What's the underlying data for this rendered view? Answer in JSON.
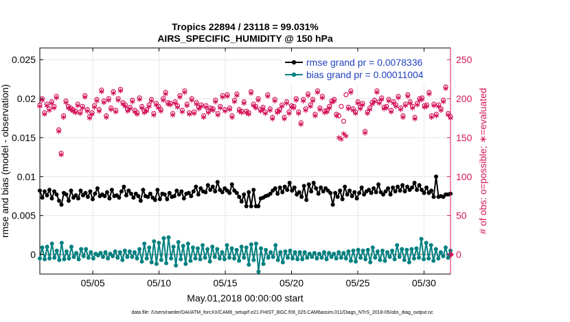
{
  "chart_data": {
    "type": "line",
    "title": "Tropics 22894 / 23118 = 99.031%",
    "subtitle": "AIRS_SPECIFIC_HUMIDITY @ 150 hPa",
    "xlabel": "May.01,2018 00:00:00 start",
    "ylabel_left": "rmse and bias (model - observation)",
    "ylabel_right": "# of obs: o=possible; ∗=evaluated",
    "xlim": [
      1,
      32
    ],
    "ylim_left": [
      -0.0025,
      0.0265
    ],
    "ylim_right": [
      -25,
      265
    ],
    "x_ticks": [
      5,
      10,
      15,
      20,
      25,
      30
    ],
    "x_tick_labels": [
      "05/05",
      "05/10",
      "05/15",
      "05/20",
      "05/25",
      "05/30"
    ],
    "y_ticks_left": [
      0,
      0.005,
      0.01,
      0.015,
      0.02,
      0.025
    ],
    "y_tick_labels_left": [
      "0",
      "0.005",
      "0.01",
      "0.015",
      "0.02",
      "0.025"
    ],
    "y_ticks_right": [
      0,
      50,
      100,
      150,
      200,
      250
    ],
    "y_tick_labels_right": [
      "0",
      "50",
      "100",
      "150",
      "200",
      "250"
    ],
    "grid": true,
    "legend_position": "top-right",
    "series": [
      {
        "name": "rmse grand pr = 0.0078336",
        "color": "#000000",
        "axis": "left",
        "values": [
          0.0082,
          0.0073,
          0.0081,
          0.0076,
          0.0083,
          0.0072,
          0.0081,
          0.0077,
          0.0069,
          0.0064,
          0.0079,
          0.0077,
          0.0069,
          0.0082,
          0.0073,
          0.0076,
          0.0072,
          0.0082,
          0.0076,
          0.0079,
          0.0074,
          0.0081,
          0.0071,
          0.0078,
          0.0085,
          0.0075,
          0.0077,
          0.0075,
          0.008,
          0.0072,
          0.0083,
          0.0075,
          0.0076,
          0.0073,
          0.0081,
          0.0087,
          0.0076,
          0.0082,
          0.0078,
          0.0073,
          0.0078,
          0.0075,
          0.0069,
          0.0083,
          0.0075,
          0.0074,
          0.0078,
          0.0073,
          0.007,
          0.0083,
          0.0071,
          0.0078,
          0.0077,
          0.0071,
          0.0079,
          0.0074,
          0.0075,
          0.0082,
          0.0077,
          0.0081,
          0.0072,
          0.0078,
          0.0079,
          0.0075,
          0.0081,
          0.0087,
          0.0077,
          0.0085,
          0.0081,
          0.008,
          0.0089,
          0.0083,
          0.0087,
          0.0081,
          0.0093,
          0.0083,
          0.008,
          0.0085,
          0.0082,
          0.0079,
          0.009,
          0.0082,
          0.0079,
          0.0074,
          0.0068,
          0.0077,
          0.0062,
          0.008,
          0.0062,
          0.0083,
          0.0062,
          0.0062,
          0.0072,
          0.0073,
          0.0075,
          0.0076,
          0.0078,
          0.0082,
          0.0085,
          0.0078,
          0.0086,
          0.008,
          0.0087,
          0.0083,
          0.0092,
          0.0082,
          0.0086,
          0.0077,
          0.008,
          0.0074,
          0.0088,
          0.007,
          0.009,
          0.0081,
          0.0092,
          0.0085,
          0.0078,
          0.0086,
          0.0081,
          0.0085,
          0.0082,
          0.0079,
          0.0064,
          0.0079,
          0.0074,
          0.0082,
          0.0071,
          0.0087,
          0.0077,
          0.0082,
          0.0075,
          0.008,
          0.0072,
          0.0079,
          0.0086,
          0.0077,
          0.0081,
          0.0083,
          0.0079,
          0.0085,
          0.008,
          0.009,
          0.008,
          0.0077,
          0.0081,
          0.0085,
          0.0077,
          0.0086,
          0.0081,
          0.0087,
          0.0082,
          0.0089,
          0.0081,
          0.0087,
          0.0083,
          0.0086,
          0.0092,
          0.0083,
          0.0089,
          0.0083,
          0.0079,
          0.0086,
          0.0079,
          0.0082,
          0.0074,
          0.01,
          0.0074,
          0.0075,
          0.0074,
          0.0077,
          0.0077,
          0.0078
        ]
      },
      {
        "name": "bias grand pr = 0.00011004",
        "color": "#008080",
        "axis": "left",
        "values": [
          -0.0005,
          0.0009,
          -0.0006,
          0.001,
          -0.0005,
          0.0014,
          -0.0004,
          0.0005,
          -0.0007,
          0.0015,
          -0.0006,
          0.0004,
          -0.0005,
          0.001,
          -0.0003,
          0.0002,
          -0.0006,
          0.0007,
          -0.0002,
          0.0007,
          -0.0004,
          0.0003,
          -0.0005,
          0.0001,
          -0.0001,
          0.0002,
          -0.0003,
          0.0003,
          -0.0005,
          0.0001,
          -0.0002,
          0.0004,
          -0.0004,
          0.0003,
          -0.0007,
          0.0005,
          -0.0003,
          0.0004,
          -0.0003,
          0.0003,
          -0.0005,
          0.0007,
          -0.0009,
          0.0014,
          -0.0005,
          0.0009,
          -0.001,
          0.0017,
          -0.0012,
          0.0015,
          -0.0007,
          0.0021,
          -0.0011,
          0.0022,
          -0.0005,
          0.001,
          -0.0014,
          0.0016,
          -0.0006,
          0.0011,
          -0.0012,
          0.0014,
          -0.0008,
          0.0009,
          -0.0005,
          0.0008,
          -0.0006,
          0.0012,
          -0.0004,
          0.0007,
          -0.0009,
          0.001,
          -0.0003,
          0.0007,
          -0.0005,
          0.0003,
          -0.0006,
          0.0012,
          -0.0004,
          0.0008,
          -0.0005,
          0.0006,
          -0.0008,
          0.001,
          -0.0004,
          0.0009,
          -0.0013,
          0.0013,
          -0.0007,
          0.0014,
          -0.0022,
          0.0008,
          -0.0012,
          0.0006,
          -0.0004,
          0.0003,
          -0.0003,
          0.0012,
          -0.0007,
          0.0003,
          -0.001,
          0.0004,
          -0.0004,
          0.0005,
          -0.0005,
          0.0003,
          -0.0006,
          0.0003,
          -0.0006,
          0.0003,
          -0.0004,
          0.0001,
          -0.0003,
          0.0002,
          -0.0005,
          0.0001,
          -0.0004,
          0.0003,
          -0.0006,
          0.0002,
          -0.0003,
          0.0001,
          -0.0005,
          0.0003,
          -0.0004,
          0.0002,
          -0.0005,
          0.0004,
          -0.0008,
          0.0005,
          -0.0009,
          0.0006,
          -0.0004,
          0.0005,
          -0.0006,
          0.0006,
          -0.001,
          0.0009,
          -0.0004,
          0.0004,
          -0.0007,
          0.0005,
          -0.0008,
          0.0003,
          -0.0003,
          0.0005,
          -0.0006,
          0.0012,
          -0.0003,
          0.0007,
          -0.0007,
          0.0006,
          -0.001,
          0.0007,
          -0.0005,
          0.0008,
          -0.0004,
          0.002,
          -0.0006,
          0.0015,
          -0.0005,
          0.0012,
          -0.0008,
          0.0007,
          -0.0005,
          0.0003,
          -0.0002,
          0.0009,
          -0.0004,
          0.0005
        ]
      },
      {
        "name": "obs possible",
        "color": "#d4145a",
        "axis": "right",
        "marker": "o",
        "values": [
          192,
          200,
          182,
          193,
          187,
          196,
          190,
          203,
          160,
          130,
          178,
          197,
          190,
          188,
          186,
          184,
          193,
          183,
          190,
          204,
          186,
          177,
          182,
          191,
          199,
          186,
          211,
          197,
          178,
          200,
          188,
          209,
          185,
          200,
          212,
          195,
          192,
          186,
          189,
          198,
          185,
          182,
          201,
          190,
          184,
          186,
          192,
          199,
          181,
          194,
          190,
          186,
          200,
          208,
          195,
          194,
          181,
          196,
          191,
          204,
          185,
          210,
          193,
          182,
          200,
          183,
          195,
          189,
          192,
          178,
          191,
          184,
          188,
          187,
          198,
          181,
          190,
          204,
          186,
          205,
          188,
          178,
          198,
          206,
          186,
          184,
          196,
          184,
          182,
          209,
          193,
          190,
          200,
          186,
          189,
          183,
          205,
          187,
          176,
          199,
          184,
          186,
          192,
          176,
          196,
          183,
          191,
          190,
          200,
          183,
          169,
          199,
          187,
          206,
          192,
          199,
          180,
          210,
          188,
          203,
          184,
          185,
          190,
          197,
          199,
          180,
          178,
          190,
          171,
          205,
          189,
          210,
          187,
          183,
          196,
          189,
          194,
          158,
          183,
          188,
          195,
          198,
          210,
          196,
          201,
          189,
          190,
          199,
          185,
          196,
          192,
          203,
          188,
          178,
          193,
          205,
          196,
          190,
          176,
          194,
          200,
          201,
          191,
          192,
          208,
          178,
          193,
          180,
          192,
          187,
          198,
          215,
          181,
          177
        ]
      },
      {
        "name": "obs evaluated",
        "color": "#d4145a",
        "axis": "right",
        "marker": "*",
        "values": [
          190,
          198,
          180,
          191,
          185,
          194,
          188,
          201,
          158,
          128,
          176,
          195,
          188,
          186,
          184,
          182,
          191,
          181,
          188,
          202,
          184,
          175,
          180,
          189,
          197,
          184,
          209,
          195,
          176,
          198,
          186,
          207,
          183,
          198,
          210,
          193,
          190,
          184,
          187,
          196,
          183,
          180,
          199,
          188,
          182,
          184,
          190,
          197,
          179,
          192,
          188,
          184,
          198,
          206,
          193,
          192,
          179,
          194,
          189,
          202,
          183,
          208,
          191,
          180,
          198,
          181,
          193,
          187,
          190,
          176,
          189,
          182,
          186,
          185,
          196,
          179,
          188,
          202,
          184,
          203,
          186,
          176,
          196,
          204,
          184,
          182,
          194,
          182,
          180,
          207,
          191,
          188,
          198,
          184,
          187,
          181,
          203,
          185,
          174,
          197,
          182,
          184,
          190,
          174,
          194,
          181,
          189,
          188,
          198,
          181,
          167,
          197,
          185,
          204,
          190,
          197,
          178,
          208,
          186,
          201,
          182,
          183,
          188,
          195,
          197,
          178,
          150,
          148,
          155,
          152,
          187,
          208,
          185,
          181,
          194,
          187,
          192,
          156,
          181,
          186,
          193,
          196,
          208,
          194,
          199,
          187,
          188,
          197,
          183,
          194,
          190,
          201,
          186,
          176,
          191,
          203,
          194,
          188,
          174,
          192,
          198,
          199,
          189,
          190,
          206,
          176,
          191,
          178,
          190,
          185,
          196,
          213,
          179,
          175
        ]
      }
    ],
    "zero_line_color": "#b0b0b0",
    "footer": "data file: /Users/raeder/DAI/ATM_forcXX/CAM6_setup/f.e21.FHIST_BGC.f09_025.CAM6assim.011/Diags_NTrS_2018-05/obs_diag_output.nc"
  }
}
